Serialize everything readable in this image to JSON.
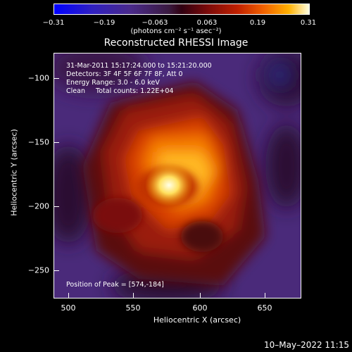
{
  "colorbar": {
    "ticks": [
      "−0.31",
      "−0.19",
      "−0.063",
      "0.063",
      "0.19",
      "0.31"
    ],
    "units": "(photons cm⁻² s⁻¹ asec⁻²)"
  },
  "title": "Reconstructed RHESSI Image",
  "annotations": {
    "time": "31-Mar-2011 15:17:24.000 to 15:21:20.000",
    "detectors": "Detectors: 3F 4F 5F 6F 7F 8F, Att 0",
    "energy": "Energy Range: 3.0 - 6.0 keV",
    "algorithm": "Clean     Total counts: 1.22E+04",
    "peak": "Position of Peak = [574,-184]"
  },
  "axes": {
    "xlabel": "Heliocentric X (arcsec)",
    "ylabel": "Heliocentric Y (arcsec)",
    "xticks": [
      "500",
      "550",
      "600",
      "650"
    ],
    "yticks": [
      "−100",
      "−150",
      "−200",
      "−250"
    ]
  },
  "footer": {
    "date": "10–May–2022 11:15"
  }
}
